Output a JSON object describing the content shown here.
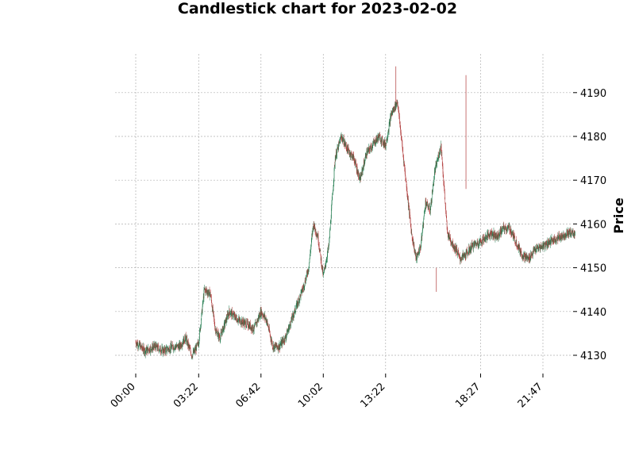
{
  "chart_data": {
    "type": "candlestick",
    "title": "Candlestick chart for 2023-02-02",
    "xlabel": "",
    "ylabel": "Price",
    "grid": true,
    "ylim": [
      4126,
      4196
    ],
    "yticks": [
      4130,
      4140,
      4150,
      4160,
      4170,
      4180,
      4190
    ],
    "xticks": [
      "00:00",
      "03:22",
      "06:42",
      "10:02",
      "13:22",
      "18:27",
      "21:47"
    ],
    "x_range": [
      "00:00",
      "24:00"
    ],
    "colors": {
      "up": "#1f7a4d",
      "down": "#b03a3a",
      "grid": "#b0b0b0"
    },
    "series": [
      {
        "x": [
          "00:00",
          "00:30",
          "01:00",
          "01:30",
          "02:00",
          "02:20",
          "02:40",
          "03:00",
          "03:10",
          "03:22",
          "03:40",
          "04:00",
          "04:15",
          "04:30",
          "05:00",
          "05:30",
          "06:00",
          "06:20",
          "06:42",
          "07:00",
          "07:20",
          "07:40",
          "08:00",
          "08:30",
          "09:00",
          "09:15",
          "09:30",
          "09:45",
          "10:02",
          "10:20",
          "10:40",
          "11:00",
          "11:20",
          "11:40",
          "12:00",
          "12:20",
          "12:40",
          "13:00",
          "13:22",
          "13:40",
          "14:00",
          "14:15",
          "14:30",
          "14:45",
          "15:00",
          "15:15",
          "15:30",
          "15:45",
          "16:00",
          "16:20",
          "16:40",
          "17:00",
          "17:10",
          "17:20",
          "17:40",
          "18:00",
          "18:27",
          "18:45",
          "19:00",
          "19:20",
          "19:40",
          "20:00",
          "20:20",
          "20:40",
          "21:00",
          "21:20",
          "21:47",
          "22:10",
          "22:40",
          "23:10",
          "23:30"
        ],
        "close": [
          4133,
          4131,
          4132,
          4131,
          4132,
          4132,
          4134,
          4130,
          4131,
          4133,
          4145,
          4144,
          4136,
          4134,
          4140,
          4138,
          4137,
          4136,
          4140,
          4138,
          4132,
          4132,
          4134,
          4140,
          4146,
          4150,
          4160,
          4157,
          4148,
          4155,
          4175,
          4180,
          4177,
          4175,
          4170,
          4176,
          4178,
          4180,
          4178,
          4185,
          4188,
          4178,
          4168,
          4158,
          4152,
          4155,
          4165,
          4163,
          4172,
          4178,
          4158,
          4155,
          4154,
          4152,
          4153,
          4155,
          4156,
          4157,
          4158,
          4157,
          4159,
          4159,
          4156,
          4153,
          4152,
          4154,
          4155,
          4156,
          4157,
          4158,
          4158
        ]
      }
    ]
  }
}
